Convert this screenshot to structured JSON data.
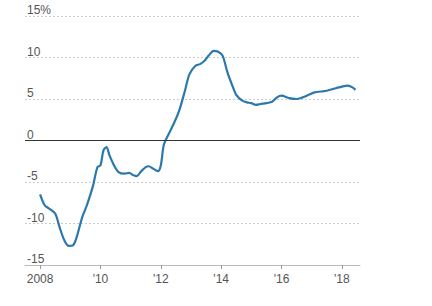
{
  "chart_data": {
    "type": "line",
    "color": "#2b78ad",
    "grid": true,
    "x": [
      2008.0,
      2008.15,
      2008.3,
      2008.5,
      2008.65,
      2008.8,
      2008.95,
      2009.1,
      2009.2,
      2009.3,
      2009.4,
      2009.55,
      2009.75,
      2009.9,
      2010.0,
      2010.1,
      2010.2,
      2010.3,
      2010.45,
      2010.6,
      2010.8,
      2010.95,
      2011.1,
      2011.2,
      2011.35,
      2011.5,
      2011.6,
      2011.75,
      2011.9,
      2012.0,
      2012.1,
      2012.25,
      2012.4,
      2012.6,
      2012.8,
      2012.95,
      2013.15,
      2013.3,
      2013.45,
      2013.6,
      2013.75,
      2013.9,
      2014.05,
      2014.2,
      2014.35,
      2014.5,
      2014.7,
      2014.85,
      2015.0,
      2015.15,
      2015.3,
      2015.5,
      2015.7,
      2015.85,
      2016.0,
      2016.25,
      2016.5,
      2016.7,
      2016.9,
      2017.1,
      2017.3,
      2017.5,
      2017.8,
      2018.0,
      2018.2,
      2018.35,
      2018.45
    ],
    "values": [
      -6.5,
      -7.8,
      -8.2,
      -8.8,
      -10.5,
      -12.0,
      -12.7,
      -12.6,
      -11.8,
      -10.5,
      -9.2,
      -7.8,
      -5.5,
      -3.2,
      -3.0,
      -1.2,
      -0.8,
      -1.8,
      -3.0,
      -3.8,
      -4.0,
      -3.9,
      -4.2,
      -4.3,
      -3.7,
      -3.2,
      -3.1,
      -3.4,
      -3.7,
      -3.0,
      -0.5,
      0.7,
      1.8,
      3.5,
      6.0,
      8.0,
      9.0,
      9.2,
      9.6,
      10.3,
      10.8,
      10.7,
      10.2,
      8.3,
      6.8,
      5.5,
      4.8,
      4.6,
      4.5,
      4.3,
      4.4,
      4.5,
      4.7,
      5.2,
      5.4,
      5.1,
      5.0,
      5.2,
      5.5,
      5.8,
      5.9,
      6.0,
      6.3,
      6.5,
      6.6,
      6.4,
      6.1
    ],
    "xlim": [
      2007.5,
      2018.6
    ],
    "xticks": [
      {
        "value": 2008,
        "label": "2008"
      },
      {
        "value": 2010,
        "label": "'10"
      },
      {
        "value": 2012,
        "label": "'12"
      },
      {
        "value": 2014,
        "label": "'14"
      },
      {
        "value": 2016,
        "label": "'16"
      },
      {
        "value": 2018,
        "label": "'18"
      }
    ],
    "ylim": [
      -15,
      15
    ],
    "yticks": [
      -15,
      -10,
      -5,
      0,
      5,
      10,
      {
        "value": 15,
        "label": "15%"
      }
    ]
  }
}
